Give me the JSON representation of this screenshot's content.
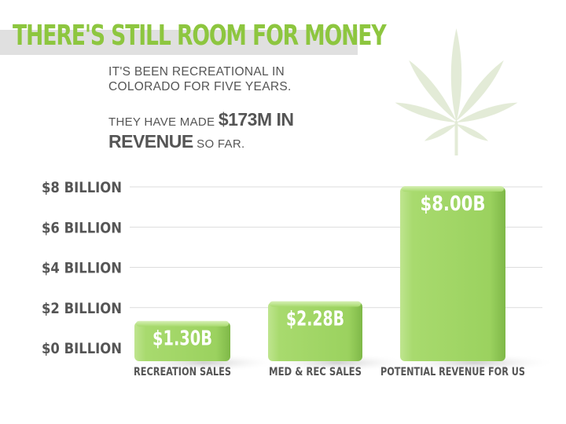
{
  "header": {
    "title": "THERE'S STILL ROOM FOR MONEY",
    "line1": "IT'S BEEN RECREATIONAL IN",
    "line2": "COLORADO FOR FIVE YEARS.",
    "line3_pre": "THEY HAVE MADE ",
    "line3_big": "$173M IN",
    "line4_big": "REVENUE",
    "line4_post": " SO FAR."
  },
  "icons": {
    "decor": "cannabis-leaf-icon"
  },
  "colors": {
    "accent": "#8dc63f",
    "bar": "#a6d86e",
    "text": "#555555",
    "band": "#e0e0e0"
  },
  "chart_data": {
    "type": "bar",
    "categories": [
      "RECREATION SALES",
      "MED & REC SALES",
      "POTENTIAL REVENUE FOR US"
    ],
    "values": [
      1.3,
      2.28,
      8.0
    ],
    "data_labels": [
      "$1.30B",
      "$2.28B",
      "$8.00B"
    ],
    "yticks": [
      0,
      2,
      4,
      6,
      8
    ],
    "ytick_labels": [
      "$0 BILLION",
      "$2 BILLION",
      "$4 BILLION",
      "$6 BILLION",
      "$8 BILLION"
    ],
    "ylim": [
      0,
      8
    ],
    "grid": true,
    "title": "",
    "xlabel": "",
    "ylabel": ""
  }
}
